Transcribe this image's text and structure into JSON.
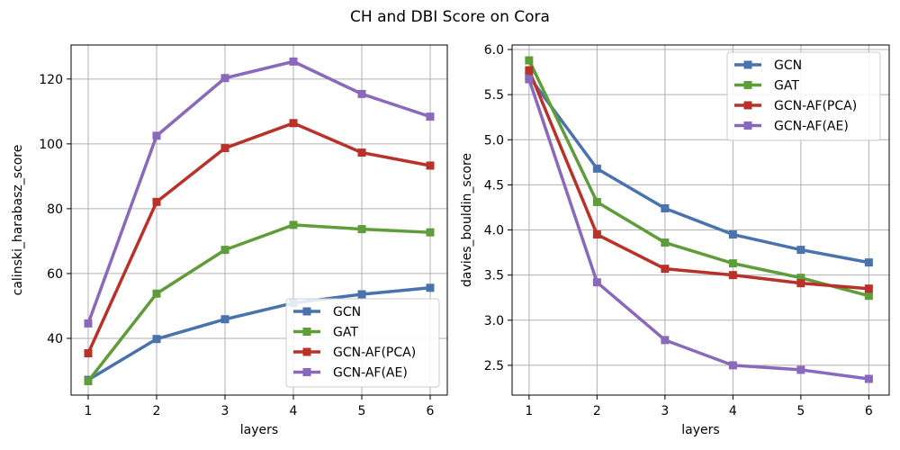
{
  "figure_title": "CH and DBI Score on Cora",
  "chart_data": [
    {
      "type": "line",
      "xlabel": "layers",
      "ylabel": "calinski_harabasz_score",
      "x": [
        1,
        2,
        3,
        4,
        5,
        6
      ],
      "xlim": [
        0.75,
        6.25
      ],
      "ylim": [
        22.5,
        130.5
      ],
      "xticks": [
        1,
        2,
        3,
        4,
        5,
        6
      ],
      "yticks": [
        40,
        60,
        80,
        100,
        120
      ],
      "grid": true,
      "legend_position": "lower-right",
      "series": [
        {
          "name": "GCN",
          "color": "#4a72ad",
          "values": [
            27.2,
            39.8,
            45.9,
            50.9,
            53.6,
            55.6
          ]
        },
        {
          "name": "GAT",
          "color": "#5f9c3a",
          "values": [
            26.8,
            53.8,
            67.3,
            75.0,
            73.7,
            72.7
          ]
        },
        {
          "name": "GCN-AF(PCA)",
          "color": "#b8322a",
          "values": [
            35.4,
            82.1,
            98.7,
            106.4,
            97.3,
            93.3
          ]
        },
        {
          "name": "GCN-AF(AE)",
          "color": "#8a68bb",
          "values": [
            44.6,
            102.5,
            120.3,
            125.4,
            115.4,
            108.4
          ]
        }
      ]
    },
    {
      "type": "line",
      "xlabel": "layers",
      "ylabel": "davies_bouldin_score",
      "x": [
        1,
        2,
        3,
        4,
        5,
        6
      ],
      "xlim": [
        0.75,
        6.3
      ],
      "ylim": [
        2.17,
        6.05
      ],
      "xticks": [
        1,
        2,
        3,
        4,
        5,
        6
      ],
      "yticks": [
        2.5,
        3.0,
        3.5,
        4.0,
        4.5,
        5.0,
        5.5,
        6.0
      ],
      "grid": true,
      "legend_position": "upper-right",
      "series": [
        {
          "name": "GCN",
          "color": "#4a72ad",
          "values": [
            5.7,
            4.68,
            4.24,
            3.95,
            3.78,
            3.64
          ]
        },
        {
          "name": "GAT",
          "color": "#5f9c3a",
          "values": [
            5.88,
            4.31,
            3.86,
            3.63,
            3.47,
            3.27
          ]
        },
        {
          "name": "GCN-AF(PCA)",
          "color": "#b8322a",
          "values": [
            5.77,
            3.95,
            3.57,
            3.5,
            3.41,
            3.35
          ]
        },
        {
          "name": "GCN-AF(AE)",
          "color": "#8a68bb",
          "values": [
            5.67,
            3.42,
            2.78,
            2.5,
            2.45,
            2.35
          ]
        }
      ]
    }
  ]
}
